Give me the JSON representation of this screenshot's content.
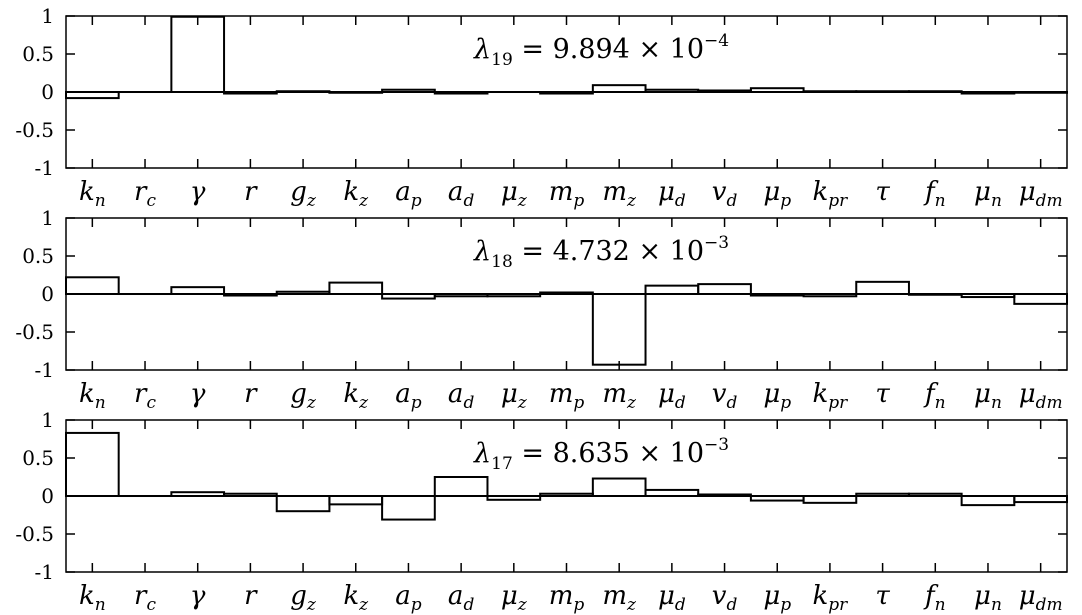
{
  "chart_data": [
    {
      "type": "bar",
      "title_parts": {
        "symbol": "λ",
        "index": "19",
        "mantissa": "9.894",
        "times": "×",
        "base": "10",
        "exponent": "−4"
      },
      "categories": [
        {
          "main": "k",
          "sub": "n"
        },
        {
          "main": "r",
          "sub": "c"
        },
        {
          "main": "γ",
          "sub": ""
        },
        {
          "main": "r",
          "sub": ""
        },
        {
          "main": "g",
          "sub": "z"
        },
        {
          "main": "k",
          "sub": "z"
        },
        {
          "main": "a",
          "sub": "p"
        },
        {
          "main": "a",
          "sub": "d"
        },
        {
          "main": "μ",
          "sub": "z"
        },
        {
          "main": "m",
          "sub": "p"
        },
        {
          "main": "m",
          "sub": "z"
        },
        {
          "main": "μ",
          "sub": "d"
        },
        {
          "main": "v",
          "sub": "d"
        },
        {
          "main": "μ",
          "sub": "p"
        },
        {
          "main": "k",
          "sub": "pr"
        },
        {
          "main": "τ",
          "sub": ""
        },
        {
          "main": "f",
          "sub": "n"
        },
        {
          "main": "μ",
          "sub": "n"
        },
        {
          "main": "μ",
          "sub": "dm"
        }
      ],
      "values": [
        -0.08,
        0.0,
        0.99,
        -0.02,
        0.01,
        -0.01,
        0.03,
        -0.02,
        0.0,
        -0.02,
        0.09,
        0.03,
        0.02,
        0.05,
        0.01,
        0.01,
        0.01,
        -0.02,
        -0.01
      ],
      "ylim": [
        -1,
        1
      ],
      "yticks": [
        "1",
        "0.5",
        "0",
        "-0.5",
        "-1"
      ],
      "ytick_values": [
        1,
        0.5,
        0,
        -0.5,
        -1
      ]
    },
    {
      "type": "bar",
      "title_parts": {
        "symbol": "λ",
        "index": "18",
        "mantissa": "4.732",
        "times": "×",
        "base": "10",
        "exponent": "−3"
      },
      "categories": [
        {
          "main": "k",
          "sub": "n"
        },
        {
          "main": "r",
          "sub": "c"
        },
        {
          "main": "γ",
          "sub": ""
        },
        {
          "main": "r",
          "sub": ""
        },
        {
          "main": "g",
          "sub": "z"
        },
        {
          "main": "k",
          "sub": "z"
        },
        {
          "main": "a",
          "sub": "p"
        },
        {
          "main": "a",
          "sub": "d"
        },
        {
          "main": "μ",
          "sub": "z"
        },
        {
          "main": "m",
          "sub": "p"
        },
        {
          "main": "m",
          "sub": "z"
        },
        {
          "main": "μ",
          "sub": "d"
        },
        {
          "main": "v",
          "sub": "d"
        },
        {
          "main": "μ",
          "sub": "p"
        },
        {
          "main": "k",
          "sub": "pr"
        },
        {
          "main": "τ",
          "sub": ""
        },
        {
          "main": "f",
          "sub": "n"
        },
        {
          "main": "μ",
          "sub": "n"
        },
        {
          "main": "μ",
          "sub": "dm"
        }
      ],
      "values": [
        0.22,
        0.0,
        0.09,
        -0.02,
        0.03,
        0.15,
        -0.06,
        -0.03,
        -0.03,
        0.02,
        -0.93,
        0.11,
        0.13,
        -0.02,
        -0.03,
        0.16,
        -0.01,
        -0.04,
        -0.13
      ],
      "ylim": [
        -1,
        1
      ],
      "yticks": [
        "1",
        "0.5",
        "0",
        "-0.5",
        "-1"
      ],
      "ytick_values": [
        1,
        0.5,
        0,
        -0.5,
        -1
      ]
    },
    {
      "type": "bar",
      "title_parts": {
        "symbol": "λ",
        "index": "17",
        "mantissa": "8.635",
        "times": "×",
        "base": "10",
        "exponent": "−3"
      },
      "categories": [
        {
          "main": "k",
          "sub": "n"
        },
        {
          "main": "r",
          "sub": "c"
        },
        {
          "main": "γ",
          "sub": ""
        },
        {
          "main": "r",
          "sub": ""
        },
        {
          "main": "g",
          "sub": "z"
        },
        {
          "main": "k",
          "sub": "z"
        },
        {
          "main": "a",
          "sub": "p"
        },
        {
          "main": "a",
          "sub": "d"
        },
        {
          "main": "μ",
          "sub": "z"
        },
        {
          "main": "m",
          "sub": "p"
        },
        {
          "main": "m",
          "sub": "z"
        },
        {
          "main": "μ",
          "sub": "d"
        },
        {
          "main": "v",
          "sub": "d"
        },
        {
          "main": "μ",
          "sub": "p"
        },
        {
          "main": "k",
          "sub": "pr"
        },
        {
          "main": "τ",
          "sub": ""
        },
        {
          "main": "f",
          "sub": "n"
        },
        {
          "main": "μ",
          "sub": "n"
        },
        {
          "main": "μ",
          "sub": "dm"
        }
      ],
      "values": [
        0.83,
        0.0,
        0.05,
        0.03,
        -0.2,
        -0.11,
        -0.31,
        0.25,
        -0.05,
        0.03,
        0.23,
        0.08,
        0.02,
        -0.06,
        -0.09,
        0.03,
        0.03,
        -0.12,
        -0.08
      ],
      "ylim": [
        -1,
        1
      ],
      "yticks": [
        "1",
        "0.5",
        "0",
        "-0.5",
        "-1"
      ],
      "ytick_values": [
        1,
        0.5,
        0,
        -0.5,
        -1
      ]
    }
  ]
}
